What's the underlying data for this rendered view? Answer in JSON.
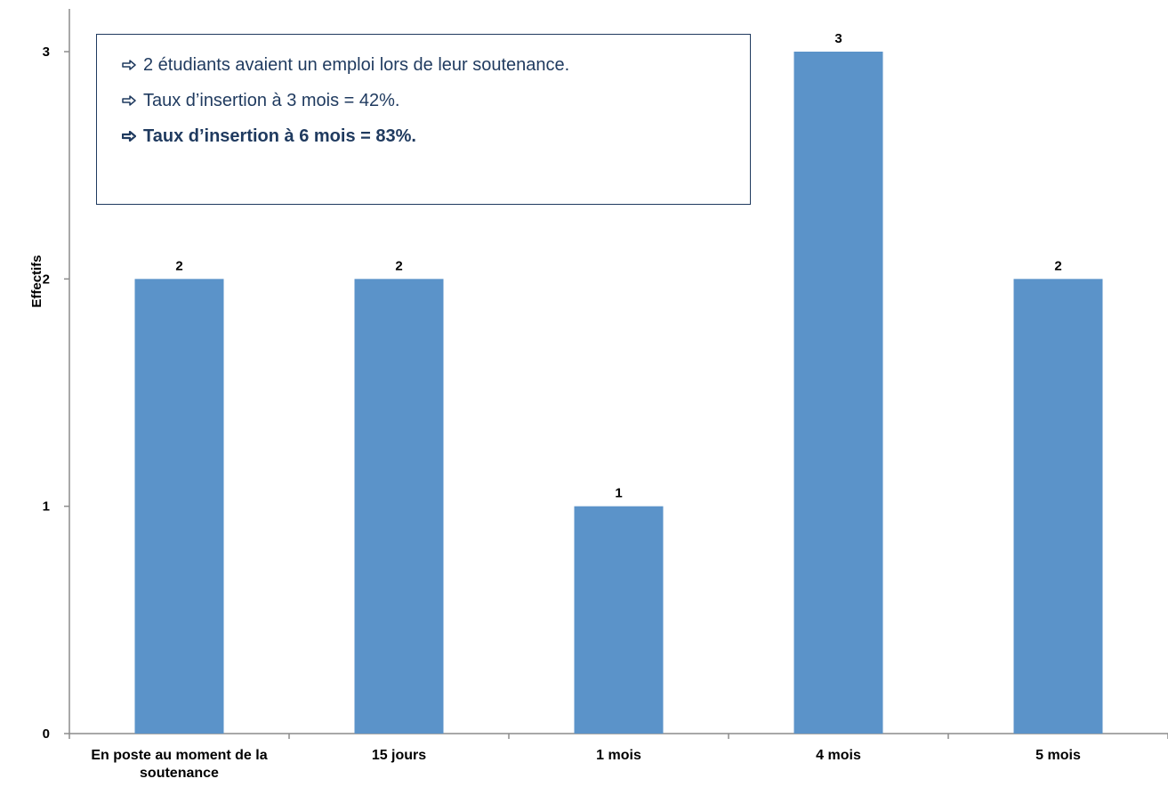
{
  "chart_data": {
    "type": "bar",
    "categories": [
      "En poste au moment de la soutenance",
      "15 jours",
      "1 mois",
      "4 mois",
      "5 mois"
    ],
    "category_lines": [
      [
        "En poste au moment de la",
        "soutenance"
      ],
      [
        "15 jours"
      ],
      [
        "1 mois"
      ],
      [
        "4 mois"
      ],
      [
        "5 mois"
      ]
    ],
    "values": [
      2,
      2,
      1,
      3,
      2
    ],
    "data_labels": [
      "2",
      "2",
      "1",
      "3",
      "2"
    ],
    "ylabel": "Effectifs",
    "xlabel": "",
    "ylim": [
      0,
      3
    ],
    "yticks": [
      "0",
      "1",
      "2",
      "3"
    ],
    "bar_color": "#5b93c9",
    "grid": false,
    "annotations": [
      {
        "text": "2 étudiants avaient un emploi lors de leur soutenance.",
        "bold": false
      },
      {
        "text": "Taux d’insertion à 3 mois = 42%.",
        "bold": false
      },
      {
        "text": "Taux d’insertion à 6 mois = 83%.",
        "bold": true
      }
    ],
    "annotation_icon": "arrow-right-outline-icon",
    "annotation_color": "#1f3a5f"
  }
}
